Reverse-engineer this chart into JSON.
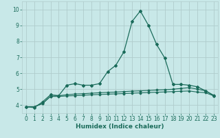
{
  "xlabel": "Humidex (Indice chaleur)",
  "ylabel": "",
  "background_color": "#c8e8e8",
  "grid_color": "#b0cccc",
  "line_color": "#1a6b5a",
  "xlim": [
    -0.5,
    23.5
  ],
  "ylim": [
    3.5,
    10.5
  ],
  "xticks": [
    0,
    1,
    2,
    3,
    4,
    5,
    6,
    7,
    8,
    9,
    10,
    11,
    12,
    13,
    14,
    15,
    16,
    17,
    18,
    19,
    20,
    21,
    22,
    23
  ],
  "yticks": [
    4,
    5,
    6,
    7,
    8,
    9,
    10
  ],
  "series1_x": [
    0,
    1,
    2,
    3,
    4,
    5,
    6,
    7,
    8,
    9,
    10,
    11,
    12,
    13,
    14,
    15,
    16,
    17,
    18,
    19,
    20,
    21,
    22,
    23
  ],
  "series1_y": [
    3.9,
    3.85,
    4.2,
    4.65,
    4.6,
    5.25,
    5.35,
    5.25,
    5.25,
    5.35,
    6.1,
    6.5,
    7.35,
    9.25,
    9.9,
    9.0,
    7.8,
    6.95,
    5.3,
    5.3,
    5.25,
    5.15,
    4.9,
    4.6
  ],
  "series2_x": [
    0,
    1,
    2,
    3,
    4,
    5,
    6,
    7,
    8,
    9,
    10,
    11,
    12,
    13,
    14,
    15,
    16,
    17,
    18,
    19,
    20,
    21,
    22,
    23
  ],
  "series2_y": [
    3.9,
    3.9,
    4.1,
    4.55,
    4.6,
    4.65,
    4.7,
    4.72,
    4.75,
    4.78,
    4.8,
    4.82,
    4.85,
    4.88,
    4.9,
    4.92,
    4.95,
    4.97,
    5.0,
    5.05,
    5.1,
    5.0,
    4.9,
    4.62
  ],
  "series3_x": [
    0,
    1,
    2,
    3,
    4,
    5,
    6,
    7,
    8,
    9,
    10,
    11,
    12,
    13,
    14,
    15,
    16,
    17,
    18,
    19,
    20,
    21,
    22,
    23
  ],
  "series3_y": [
    3.9,
    3.9,
    4.1,
    4.55,
    4.55,
    4.58,
    4.6,
    4.62,
    4.65,
    4.67,
    4.69,
    4.71,
    4.73,
    4.75,
    4.77,
    4.79,
    4.81,
    4.83,
    4.85,
    4.87,
    4.89,
    4.82,
    4.78,
    4.58
  ]
}
